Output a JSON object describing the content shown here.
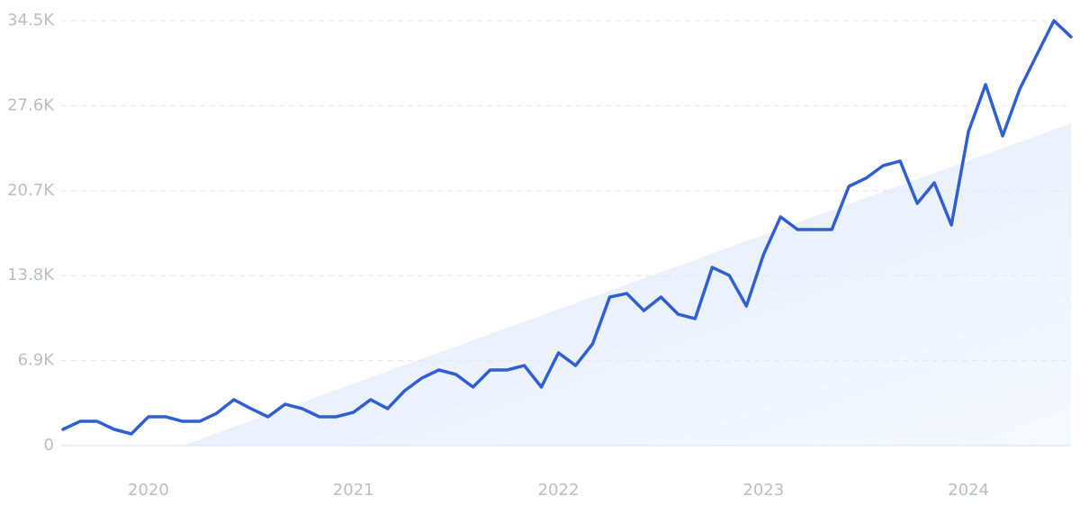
{
  "chart_data": {
    "type": "line",
    "categories": [
      null,
      null,
      null,
      null,
      null,
      "2020",
      null,
      null,
      null,
      null,
      null,
      null,
      null,
      null,
      null,
      null,
      null,
      "2021",
      null,
      null,
      null,
      null,
      null,
      null,
      null,
      null,
      null,
      null,
      null,
      "2022",
      null,
      null,
      null,
      null,
      null,
      null,
      null,
      null,
      null,
      null,
      null,
      "2023",
      null,
      null,
      null,
      null,
      null,
      null,
      null,
      null,
      null,
      null,
      null,
      "2024",
      null,
      null,
      null,
      null,
      null,
      null
    ],
    "series": [
      {
        "color": "#2f5fd0",
        "values": [
          1316,
          1970,
          1970,
          1316,
          950,
          2340,
          2340,
          1970,
          1970,
          2630,
          3730,
          3000,
          2340,
          3360,
          3000,
          2340,
          2340,
          2700,
          3730,
          3000,
          4460,
          5480,
          6140,
          5780,
          4750,
          6140,
          6140,
          6500,
          4750,
          7530,
          6500,
          8260,
          12060,
          12350,
          10960,
          12060,
          10670,
          10310,
          14470,
          13820,
          11330,
          15500,
          18570,
          17540,
          17540,
          17540,
          21050,
          21710,
          22730,
          23100,
          19660,
          21340,
          17910,
          25510,
          29310,
          25150,
          28950,
          31730,
          34500,
          33190
        ]
      }
    ],
    "trend": {
      "color": "#e3edfb",
      "values": [
        null,
        null,
        null,
        null,
        null,
        null,
        null,
        0,
        503,
        1006,
        1509,
        2012,
        2515,
        3018,
        3521,
        4024,
        4527,
        5030,
        5533,
        6036,
        6539,
        7042,
        7545,
        8048,
        8551,
        9054,
        9557,
        10060,
        10563,
        11066,
        11569,
        12072,
        12575,
        13078,
        13581,
        14084,
        14587,
        15090,
        15593,
        16096,
        16599,
        17102,
        17605,
        18108,
        18611,
        19114,
        19617,
        20120,
        20623,
        21126,
        21629,
        22132,
        22635,
        23138,
        23641,
        24144,
        24647,
        25150,
        25653,
        26156
      ]
    },
    "ylim": [
      0,
      34500
    ],
    "yticks": [
      0,
      {
        "value": 6900,
        "label": "6.9K"
      },
      {
        "value": 13800,
        "label": "13.8K"
      },
      {
        "value": 20700,
        "label": "20.7K"
      },
      {
        "value": 27600,
        "label": "27.6K"
      },
      {
        "value": 34500,
        "label": "34.5K"
      }
    ],
    "grid": true
  }
}
